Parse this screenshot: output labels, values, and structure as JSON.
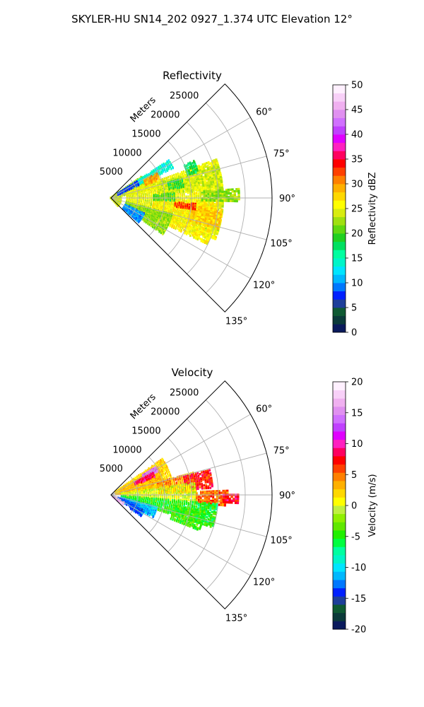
{
  "figure_title": "SKYLER-HU  SN14_202  0927_1.374 UTC Elevation 12°",
  "chart_data": [
    {
      "type": "heatmap",
      "title": "Reflectivity",
      "projection": "polar sector",
      "range_label": "Meters",
      "range_ticks": [
        5000,
        10000,
        15000,
        20000,
        25000
      ],
      "azimuth_ticks": [
        "60°",
        "75°",
        "90°",
        "105°",
        "120°",
        "135°"
      ],
      "azimuth_range_deg": [
        45,
        135
      ],
      "range_max_m": 30000,
      "grid": true,
      "colorbar": {
        "label": "Reflectivity dBZ",
        "min": 0,
        "max": 50,
        "ticks": [
          0,
          5,
          10,
          15,
          20,
          25,
          30,
          35,
          40,
          45,
          50
        ],
        "colors": [
          "#0a1a5c",
          "#0b3a3a",
          "#0f5a33",
          "#1e3f9a",
          "#0020ff",
          "#0078ff",
          "#00b8ff",
          "#00e5ff",
          "#00f5c8",
          "#00ffa0",
          "#00e060",
          "#20d020",
          "#60d810",
          "#a0e010",
          "#d8ec10",
          "#ffff00",
          "#ffd800",
          "#ffb000",
          "#ff8000",
          "#ff4000",
          "#ff0000",
          "#ff0060",
          "#ff20c0",
          "#e000ff",
          "#c040ff",
          "#d070ff",
          "#e090f0",
          "#f0b0f0",
          "#f8d0f8",
          "#fff0ff"
        ]
      },
      "regions": [
        {
          "az": [
            52,
            140
          ],
          "r": [
            0,
            2000
          ],
          "value": 24
        },
        {
          "az": [
            55,
            66
          ],
          "r": [
            1500,
            7000
          ],
          "value": 22
        },
        {
          "az": [
            66,
            78
          ],
          "r": [
            1000,
            9000
          ],
          "value": 24
        },
        {
          "az": [
            70,
            112
          ],
          "r": [
            3000,
            21000
          ],
          "value": 25
        },
        {
          "az": [
            73,
            85
          ],
          "r": [
            9000,
            21000
          ],
          "value": 24
        },
        {
          "az": [
            92,
            116
          ],
          "r": [
            8000,
            20000
          ],
          "value": 26
        },
        {
          "az": [
            96,
            106
          ],
          "r": [
            15000,
            21000
          ],
          "value": 28
        },
        {
          "az": [
            86,
            92
          ],
          "r": [
            17000,
            24000
          ],
          "value": 22
        },
        {
          "az": [
            105,
            125
          ],
          "r": [
            3000,
            12000
          ],
          "value": 22
        },
        {
          "az": [
            57,
            65
          ],
          "r": [
            6000,
            13000
          ],
          "value": 14
        },
        {
          "az": [
            57,
            66
          ],
          "r": [
            1500,
            6000
          ],
          "value": 8
        },
        {
          "az": [
            115,
            132
          ],
          "r": [
            3000,
            7000
          ],
          "value": 10
        },
        {
          "az": [
            66,
            74
          ],
          "r": [
            15000,
            17000
          ],
          "value": 18
        },
        {
          "az": [
            75,
            82
          ],
          "r": [
            11000,
            14000
          ],
          "value": 19
        },
        {
          "az": [
            62,
            70
          ],
          "r": [
            7000,
            10000
          ],
          "value": 30
        },
        {
          "az": [
            86,
            93
          ],
          "r": [
            8000,
            12000
          ],
          "value": 20
        },
        {
          "az": [
            94,
            98
          ],
          "r": [
            12000,
            16000
          ],
          "value": 33
        }
      ]
    },
    {
      "type": "heatmap",
      "title": "Velocity",
      "projection": "polar sector",
      "range_label": "Meters",
      "range_ticks": [
        5000,
        10000,
        15000,
        20000,
        25000
      ],
      "azimuth_ticks": [
        "60°",
        "75°",
        "90°",
        "105°",
        "120°",
        "135°"
      ],
      "azimuth_range_deg": [
        45,
        135
      ],
      "range_max_m": 30000,
      "grid": true,
      "colorbar": {
        "label": "Velocity (m/s)",
        "min": -20,
        "max": 20,
        "ticks": [
          -20,
          -15,
          -10,
          -5,
          0,
          5,
          10,
          15,
          20
        ],
        "colors": [
          "#0a1a5c",
          "#0b3a3a",
          "#0f5a33",
          "#1e3f9a",
          "#0020ff",
          "#0078ff",
          "#00b8ff",
          "#00e5ff",
          "#00f5c8",
          "#00ffa0",
          "#00ff40",
          "#20f000",
          "#60e800",
          "#90f000",
          "#c0f040",
          "#ffff00",
          "#ffd800",
          "#ffb000",
          "#ff8000",
          "#ff4000",
          "#ff0000",
          "#ff0060",
          "#ff20c0",
          "#e000ff",
          "#c040ff",
          "#d070ff",
          "#e090f0",
          "#f0b0f0",
          "#f8d0f8",
          "#fff0ff"
        ]
      },
      "regions": [
        {
          "az": [
            55,
            82
          ],
          "r": [
            1000,
            12000
          ],
          "value": 2
        },
        {
          "az": [
            60,
            80
          ],
          "r": [
            2000,
            10000
          ],
          "value": 3
        },
        {
          "az": [
            75,
            88
          ],
          "r": [
            9000,
            16000
          ],
          "value": 4
        },
        {
          "az": [
            76,
            86
          ],
          "r": [
            14000,
            19000
          ],
          "value": 7
        },
        {
          "az": [
            58,
            64
          ],
          "r": [
            7000,
            10000
          ],
          "value": 14
        },
        {
          "az": [
            62,
            68
          ],
          "r": [
            5000,
            9000
          ],
          "value": 9
        },
        {
          "az": [
            82,
            95
          ],
          "r": [
            2000,
            16000
          ],
          "value": 0
        },
        {
          "az": [
            88,
            96
          ],
          "r": [
            16000,
            22000
          ],
          "value": 5
        },
        {
          "az": [
            90,
            94
          ],
          "r": [
            21000,
            24000
          ],
          "value": 8
        },
        {
          "az": [
            95,
            108
          ],
          "r": [
            2000,
            20000
          ],
          "value": -5
        },
        {
          "az": [
            100,
            112
          ],
          "r": [
            12000,
            18000
          ],
          "value": -4
        },
        {
          "az": [
            105,
            118
          ],
          "r": [
            2000,
            9000
          ],
          "value": -11
        },
        {
          "az": [
            110,
            122
          ],
          "r": [
            1500,
            6000
          ],
          "value": -13
        },
        {
          "az": [
            120,
            132
          ],
          "r": [
            500,
            3000
          ],
          "value": 17
        },
        {
          "az": [
            115,
            125
          ],
          "r": [
            4500,
            7000
          ],
          "value": -13
        }
      ]
    }
  ]
}
